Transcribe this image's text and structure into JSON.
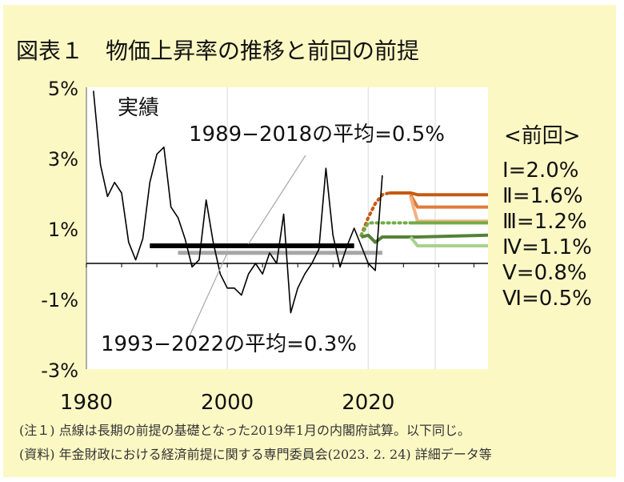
{
  "title": "図表１　物価上昇率の推移と前回の前提",
  "chart_data": {
    "type": "line",
    "ylim": [
      -3,
      5
    ],
    "xlim": [
      1980,
      2037
    ],
    "y_ticks": [
      "5%",
      "3%",
      "1%",
      "-1%",
      "-3%"
    ],
    "y_tick_values": [
      5,
      3,
      1,
      -1,
      -3
    ],
    "x_ticks": [
      "1980",
      "2000",
      "2020"
    ],
    "x_tick_values": [
      1980,
      2000,
      2020
    ],
    "colors": {
      "actual": "#000000",
      "avg_1989_2018": "#000000",
      "avg_1993_2022": "#a6a6a6",
      "case1": "#c55a11",
      "case2": "#e07b3a",
      "case3": "#f4b183",
      "case4": "#70ad47",
      "case5": "#548235",
      "case6": "#a9d18e"
    },
    "actual": {
      "label": "実績",
      "x": [
        1981,
        1982,
        1983,
        1984,
        1985,
        1986,
        1987,
        1988,
        1989,
        1990,
        1991,
        1992,
        1993,
        1994,
        1995,
        1996,
        1997,
        1998,
        1999,
        2000,
        2001,
        2002,
        2003,
        2004,
        2005,
        2006,
        2007,
        2008,
        2009,
        2010,
        2011,
        2012,
        2013,
        2014,
        2015,
        2016,
        2017,
        2018,
        2019,
        2020,
        2021,
        2022
      ],
      "y": [
        4.9,
        2.8,
        1.9,
        2.3,
        2.0,
        0.6,
        0.1,
        0.7,
        2.3,
        3.1,
        3.3,
        1.6,
        1.3,
        0.7,
        -0.1,
        0.1,
        1.8,
        0.6,
        -0.3,
        -0.7,
        -0.7,
        -0.9,
        -0.3,
        0.0,
        -0.3,
        0.3,
        0.0,
        1.4,
        -1.4,
        -0.7,
        -0.3,
        0.0,
        0.4,
        2.7,
        0.8,
        -0.1,
        0.5,
        1.0,
        0.5,
        0.0,
        -0.2,
        2.5
      ]
    },
    "averages": [
      {
        "label": "1989−2018の平均=0.5%",
        "value": 0.5,
        "x_start": 1989,
        "x_end": 2018
      },
      {
        "label": "1993−2022の平均=0.3%",
        "value": 0.3,
        "x_start": 1993,
        "x_end": 2022
      }
    ],
    "projections": [
      {
        "name": "Ⅰ=2.0%",
        "dotted": [
          [
            2019,
            0.8
          ],
          [
            2020,
            1.3
          ],
          [
            2021,
            1.7
          ],
          [
            2022,
            1.95
          ],
          [
            2023,
            2.0
          ]
        ],
        "solid": [
          [
            2023,
            2.0
          ],
          [
            2026,
            2.0
          ],
          [
            2027,
            1.95
          ],
          [
            2037,
            1.95
          ]
        ]
      },
      {
        "name": "Ⅱ=1.6%",
        "dotted": [],
        "solid": [
          [
            2026,
            1.95
          ],
          [
            2027,
            1.6
          ],
          [
            2037,
            1.6
          ]
        ]
      },
      {
        "name": "Ⅲ=1.2%",
        "dotted": [],
        "solid": [
          [
            2026,
            1.9
          ],
          [
            2027,
            1.2
          ],
          [
            2037,
            1.2
          ]
        ]
      },
      {
        "name": "Ⅳ=1.1%",
        "dotted": [
          [
            2019,
            0.8
          ],
          [
            2020,
            1.15
          ],
          [
            2026,
            1.15
          ]
        ],
        "solid": [
          [
            2026,
            1.15
          ],
          [
            2037,
            1.15
          ]
        ]
      },
      {
        "name": "Ⅴ=0.8%",
        "dotted": [],
        "solid": [
          [
            2019,
            0.75
          ],
          [
            2020,
            0.8
          ],
          [
            2021,
            0.6
          ],
          [
            2022,
            0.75
          ],
          [
            2026,
            0.75
          ],
          [
            2027,
            0.75
          ],
          [
            2037,
            0.8
          ]
        ]
      },
      {
        "name": "Ⅵ=0.5%",
        "dotted": [],
        "solid": [
          [
            2026,
            0.75
          ],
          [
            2027,
            0.5
          ],
          [
            2037,
            0.5
          ]
        ]
      }
    ],
    "legend_title": "<前回>"
  },
  "notes": [
    "(注１) 点線は長期の前提の基礎となった2019年1月の内閣府試算。以下同じ。",
    "(資料) 年金財政における経済前提に関する専門委員会(2023. 2. 24) 詳細データ等"
  ]
}
